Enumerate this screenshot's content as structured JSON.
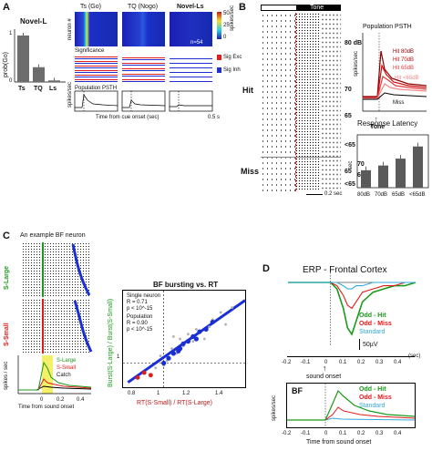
{
  "panel_labels": {
    "A": "A",
    "B": "B",
    "C": "C",
    "D": "D"
  },
  "panelA": {
    "title": "Novel-L",
    "ylabel": "prob(Go)",
    "col_titles": [
      "Ts (Go)",
      "TQ (Nogo)",
      "Novel-Ls"
    ],
    "row_labels": [
      "neuron #",
      "Significance",
      "Population PSTH"
    ],
    "sig_legend": [
      "Sig Exc",
      "Sig Inh"
    ],
    "colorbar": {
      "label": "spikes/sec",
      "ticks": [
        "50",
        "25",
        "0"
      ]
    },
    "n_label": "n=54",
    "psth_ylabel": "spikes/sec",
    "xlabel": "Time from cue onset (sec)",
    "scalebar": "0.5 s",
    "chart_data": {
      "type": "bar",
      "categories": [
        "Ts",
        "TQ",
        "Ls"
      ],
      "values": [
        0.88,
        0.28,
        0.03
      ],
      "ylabel": "prob(Go)",
      "ylim": [
        0,
        1
      ],
      "yticks": [
        "1",
        "0"
      ]
    }
  },
  "panelB": {
    "tone_label": "Tone",
    "raster_levels": [
      "80 dB",
      "70",
      "65",
      "<65",
      "65",
      "<65"
    ],
    "hit_label": "Hit",
    "miss_label": "Miss",
    "miss_levels": [
      "70",
      "65"
    ],
    "scalebar": "0.2 sec",
    "psth_title": "Population PSTH",
    "psth_ylabel": "spikes/sec",
    "psth_arrow": "Tone",
    "psth_legend": [
      "Hit 80dB",
      "Hit 70dB",
      "Hit 65dB",
      "Hit <65dB",
      "Miss"
    ],
    "latency_chart": {
      "type": "bar",
      "title": "Response Latency",
      "categories": [
        "80dB",
        "70dB",
        "65dB",
        "<65dB"
      ],
      "values": [
        0.33,
        0.42,
        0.55,
        0.78
      ],
      "ylabel": "sec",
      "ylim": [
        0,
        1
      ]
    }
  },
  "panelC": {
    "example_title": "An example BF neuron",
    "row_labels": [
      "S-Large",
      "S-Small"
    ],
    "psth_ylabel": "spikes / sec",
    "psth_legend": [
      "S-Large",
      "S-Small",
      "Catch"
    ],
    "xlabel": "Time from sound onset",
    "xticks": [
      "0",
      "0.2",
      "0.4"
    ],
    "scatter_title": "BF bursting vs. RT",
    "stats": [
      "Single neuron",
      "R = 0.71",
      "p < 10^-15",
      "Population",
      "R = 0.90",
      "p < 10^-15"
    ],
    "scatter_xlabel": "RT(S-Small) / RT(S-Large)",
    "scatter_ylabel": "Burst(S-Large) / Burst(S-Small)",
    "chart_data": {
      "type": "scatter",
      "xticks": [
        "0.8",
        "1",
        "1.2",
        "1.4"
      ],
      "yticks": [
        "1"
      ],
      "xlim": [
        0.75,
        1.5
      ],
      "ylim": [
        0,
        4
      ],
      "series": [
        {
          "name": "Single neuron",
          "color": "#b0b0b0",
          "x": [
            0.95,
            0.98,
            1.02,
            1.05,
            1.08,
            1.1,
            1.12,
            1.15,
            1.2,
            1.25,
            1.3,
            1.35,
            1.38,
            1.42,
            1.0,
            1.06,
            1.18,
            1.28
          ],
          "y": [
            0.8,
            1.3,
            1.1,
            1.6,
            1.4,
            2.0,
            1.7,
            2.2,
            2.4,
            2.0,
            2.8,
            3.1,
            2.6,
            3.3,
            0.9,
            2.1,
            1.9,
            2.5
          ]
        },
        {
          "name": "Population",
          "color": "#1a2fd6",
          "x": [
            1.0,
            1.03,
            1.06,
            1.09,
            1.12,
            1.15,
            1.18,
            1.22,
            1.26,
            1.3,
            1.1,
            1.2
          ],
          "y": [
            1.0,
            1.2,
            1.4,
            1.5,
            1.8,
            1.9,
            2.1,
            2.3,
            2.4,
            2.7,
            1.6,
            2.0
          ]
        },
        {
          "name": "below",
          "color": "#e01a1a",
          "x": [
            0.84,
            0.88,
            0.92
          ],
          "y": [
            0.4,
            0.6,
            0.5
          ]
        }
      ]
    }
  },
  "panelD": {
    "title": "ERP - Frontal Cortex",
    "legend": [
      "Odd - Hit",
      "Odd - Miss",
      "Standard"
    ],
    "legend_colors": [
      "#1a9a1a",
      "#e01a1a",
      "#33a8e0"
    ],
    "scale": "50µV",
    "xticks": [
      "-0.2",
      "-0.1",
      "0",
      "0.1",
      "0.2",
      "0.3",
      "0.4"
    ],
    "xunit": "(sec)",
    "onset_label": "sound onset",
    "bf_label": "BF",
    "bf_ylabel": "spikes/sec",
    "bf_xlabel": "Time from sound onset",
    "bf_xticks": [
      "-0.2",
      "-0.1",
      "0",
      "0.1",
      "0.2",
      "0.3",
      "0.4"
    ],
    "chart_data": {
      "type": "line",
      "x": [
        -0.2,
        -0.15,
        -0.1,
        -0.05,
        0,
        0.03,
        0.06,
        0.08,
        0.1,
        0.12,
        0.15,
        0.2,
        0.25,
        0.3,
        0.35,
        0.4
      ],
      "series": [
        {
          "name": "Odd - Hit",
          "values": [
            0,
            0,
            0,
            0,
            0,
            -2,
            -8,
            -14,
            -16,
            -12,
            -6,
            -3,
            -2,
            -1,
            -1,
            0
          ]
        },
        {
          "name": "Odd - Miss",
          "values": [
            0,
            0,
            0,
            0,
            0,
            -1,
            -4,
            -7,
            -8,
            -6,
            -3,
            -2,
            -1,
            -1,
            0,
            0
          ]
        },
        {
          "name": "Standard",
          "values": [
            0,
            0,
            0,
            0,
            0,
            0,
            -1,
            -2,
            -2,
            -1,
            -1,
            0,
            0,
            0,
            0,
            0
          ]
        }
      ]
    }
  }
}
